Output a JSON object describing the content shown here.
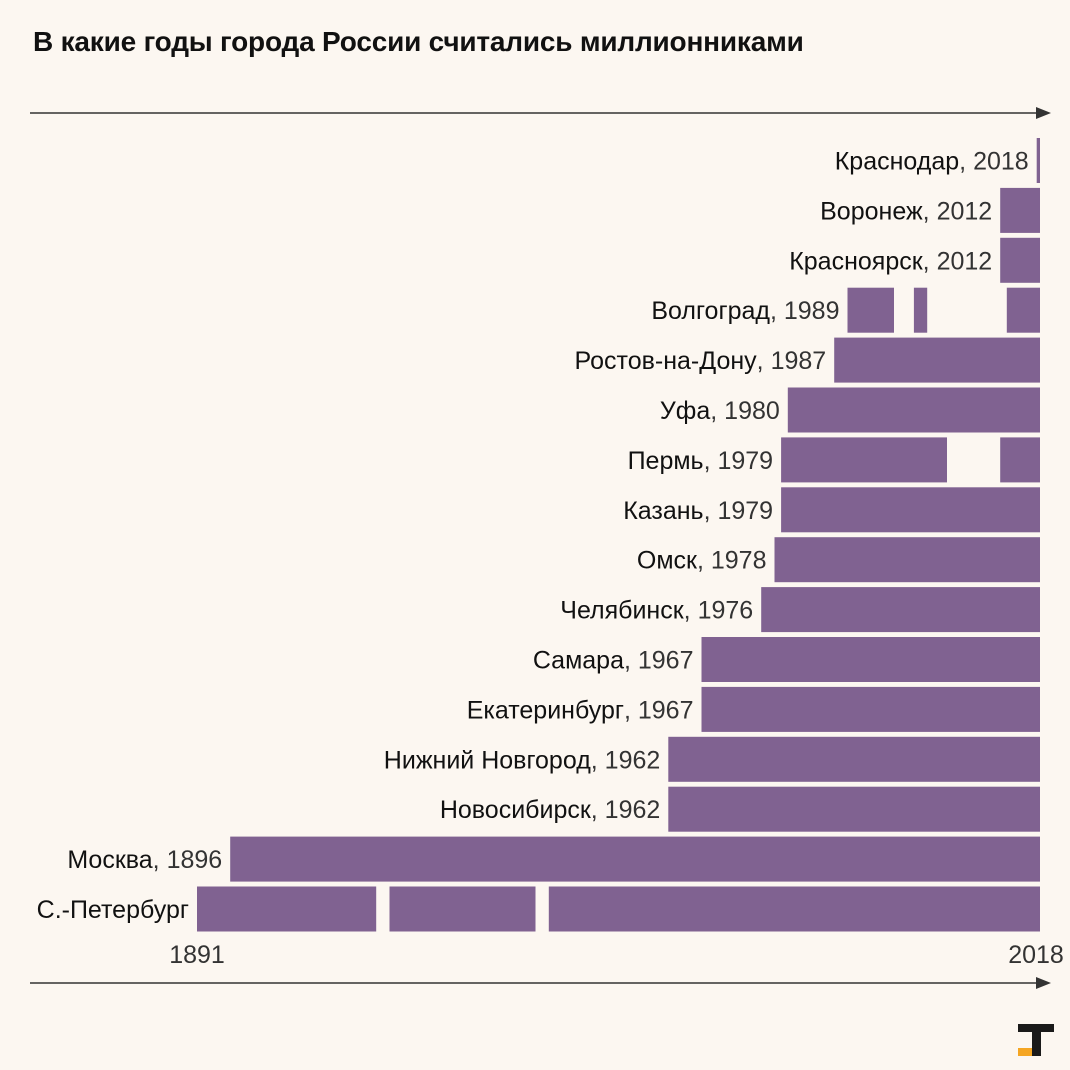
{
  "header": {
    "title": "В какие годы города России считались миллионниками"
  },
  "colors": {
    "bar": "#806291",
    "background": "#fcf7f1",
    "axis": "#333333",
    "logo_dark": "#1a1a1a",
    "logo_accent": "#f5a623"
  },
  "logo": {
    "icon": "t-logo-icon"
  },
  "chart_data": {
    "type": "bar",
    "orientation": "horizontal",
    "title": "В какие годы города России считались миллионниками",
    "xlim": [
      1891,
      2018
    ],
    "x_tick_labels": [
      "1891",
      "2018"
    ],
    "cities": [
      {
        "name": "Краснодар",
        "year_label": ", 2018",
        "periods": [
          [
            2017.5,
            2018
          ]
        ]
      },
      {
        "name": "Воронеж",
        "year_label": ", 2012",
        "periods": [
          [
            2012,
            2018
          ]
        ]
      },
      {
        "name": "Красноярск",
        "year_label": ", 2012",
        "periods": [
          [
            2012,
            2018
          ]
        ]
      },
      {
        "name": "Волгоград",
        "year_label": ", 1989",
        "periods": [
          [
            1989,
            1996
          ],
          [
            1999,
            2001
          ],
          [
            2013,
            2018
          ]
        ]
      },
      {
        "name": "Ростов-на-Дону",
        "year_label": ", 1987",
        "periods": [
          [
            1987,
            2018
          ]
        ]
      },
      {
        "name": "Уфа",
        "year_label": ", 1980",
        "periods": [
          [
            1980,
            2018
          ]
        ]
      },
      {
        "name": "Пермь",
        "year_label": ", 1979",
        "periods": [
          [
            1979,
            2004
          ],
          [
            2012,
            2018
          ]
        ]
      },
      {
        "name": "Казань",
        "year_label": ", 1979",
        "periods": [
          [
            1979,
            2018
          ]
        ]
      },
      {
        "name": "Омск",
        "year_label": ", 1978",
        "periods": [
          [
            1978,
            2018
          ]
        ]
      },
      {
        "name": "Челябинск",
        "year_label": ", 1976",
        "periods": [
          [
            1976,
            2018
          ]
        ]
      },
      {
        "name": "Самара",
        "year_label": ", 1967",
        "periods": [
          [
            1967,
            2018
          ]
        ]
      },
      {
        "name": "Екатеринбург",
        "year_label": ", 1967",
        "periods": [
          [
            1967,
            2018
          ]
        ]
      },
      {
        "name": "Нижний Новгород",
        "year_label": ", 1962",
        "periods": [
          [
            1962,
            2018
          ]
        ]
      },
      {
        "name": "Новосибирск",
        "year_label": ", 1962",
        "periods": [
          [
            1962,
            2018
          ]
        ]
      },
      {
        "name": "Москва",
        "year_label": ", 1896",
        "periods": [
          [
            1896,
            2018
          ]
        ]
      },
      {
        "name": "С.-Петербург",
        "year_label": "",
        "periods": [
          [
            1891,
            1918
          ],
          [
            1920,
            1942
          ],
          [
            1944,
            2018
          ]
        ]
      }
    ]
  }
}
